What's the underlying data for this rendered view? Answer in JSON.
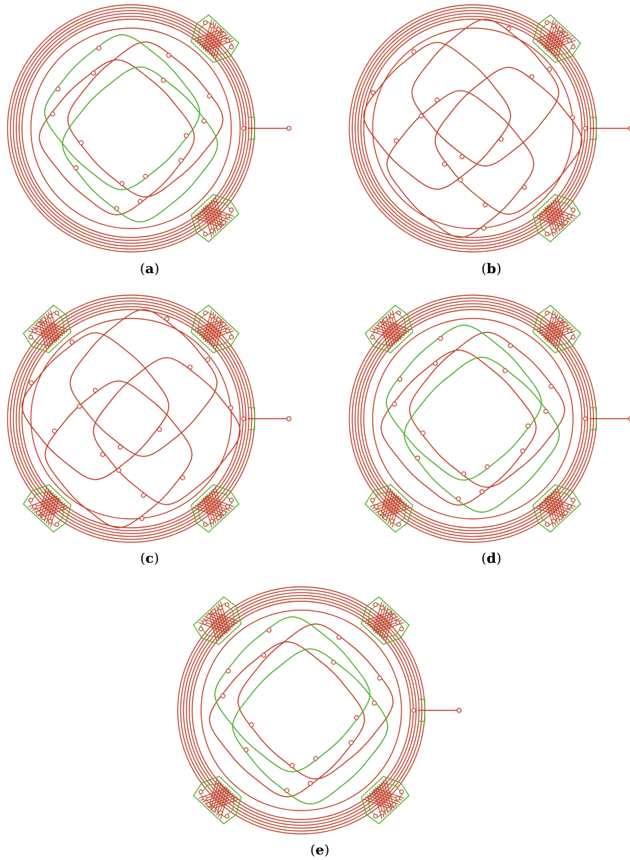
{
  "figure": {
    "colors": {
      "red": "#c1402a",
      "green": "#4aae2a",
      "background": "#ffffff"
    },
    "panels": [
      {
        "id": "a",
        "label": "a",
        "corner_pads": [
          "top-right",
          "bottom-right"
        ],
        "side_pad": "right",
        "red_loops": 2,
        "green_loops": 2,
        "output_lead": true
      },
      {
        "id": "b",
        "label": "b",
        "corner_pads": [
          "top-right",
          "bottom-right"
        ],
        "side_pad": "right",
        "red_loops": 4,
        "green_loops": 0,
        "output_lead": true
      },
      {
        "id": "c",
        "label": "c",
        "corner_pads": [
          "top-left",
          "top-right",
          "bottom-left",
          "bottom-right"
        ],
        "side_pad": "right",
        "red_loops": 4,
        "green_loops": 0,
        "output_lead": true
      },
      {
        "id": "d",
        "label": "d",
        "corner_pads": [
          "top-left",
          "top-right",
          "bottom-left",
          "bottom-right"
        ],
        "side_pad": "right",
        "red_loops": 2,
        "green_loops": 2,
        "output_lead": true
      },
      {
        "id": "e",
        "label": "e",
        "corner_pads": [
          "top-left",
          "top-right",
          "bottom-left",
          "bottom-right"
        ],
        "side_pad": "right",
        "red_loops": 2,
        "green_loops": 2,
        "output_lead": true
      }
    ]
  }
}
